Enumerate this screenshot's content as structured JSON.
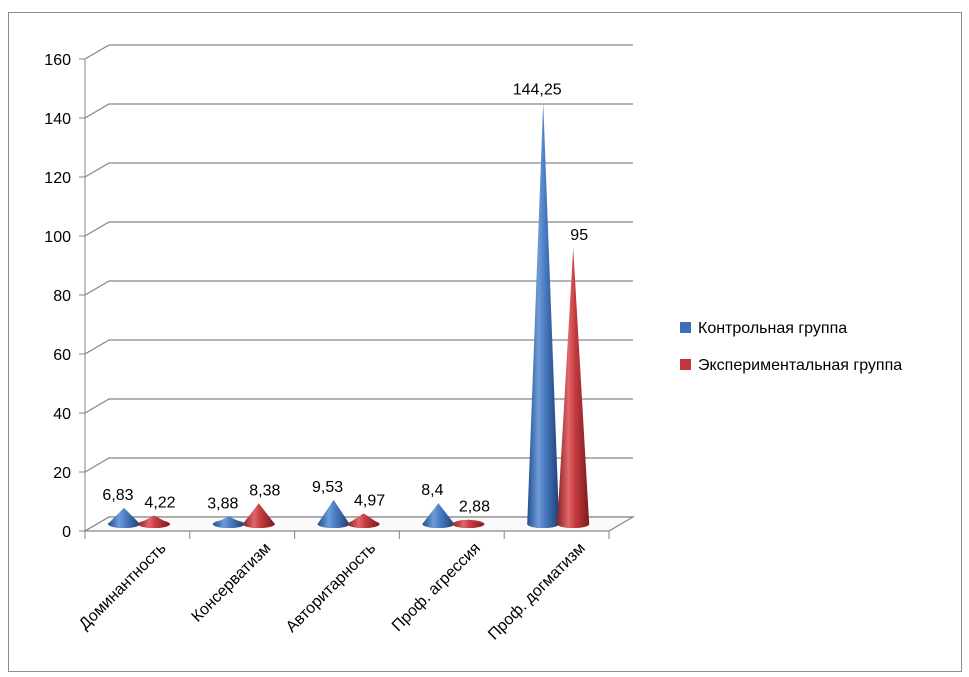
{
  "chart_data": {
    "type": "bar",
    "bar_shape": "cone-3d",
    "categories": [
      "Доминантность",
      "Консерватизм",
      "Авторитарность",
      "Проф. агрессия",
      "Проф. догматизм"
    ],
    "series": [
      {
        "name": "Контрольная группа",
        "values": [
          6.83,
          3.88,
          9.53,
          8.4,
          144.25
        ],
        "labels": [
          "6,83",
          "3,88",
          "9,53",
          "8,4",
          "144,25"
        ],
        "color": "#3d6fb8"
      },
      {
        "name": "Экспериментальная группа",
        "values": [
          4.22,
          8.38,
          4.97,
          2.88,
          95
        ],
        "labels": [
          "4,22",
          "8,38",
          "4,97",
          "2,88",
          "95"
        ],
        "color": "#c0363a"
      }
    ],
    "y_ticks": [
      "0",
      "20",
      "40",
      "60",
      "80",
      "100",
      "120",
      "140",
      "160"
    ],
    "ylim": [
      0,
      160
    ],
    "grid": true,
    "legend_position": "right"
  }
}
